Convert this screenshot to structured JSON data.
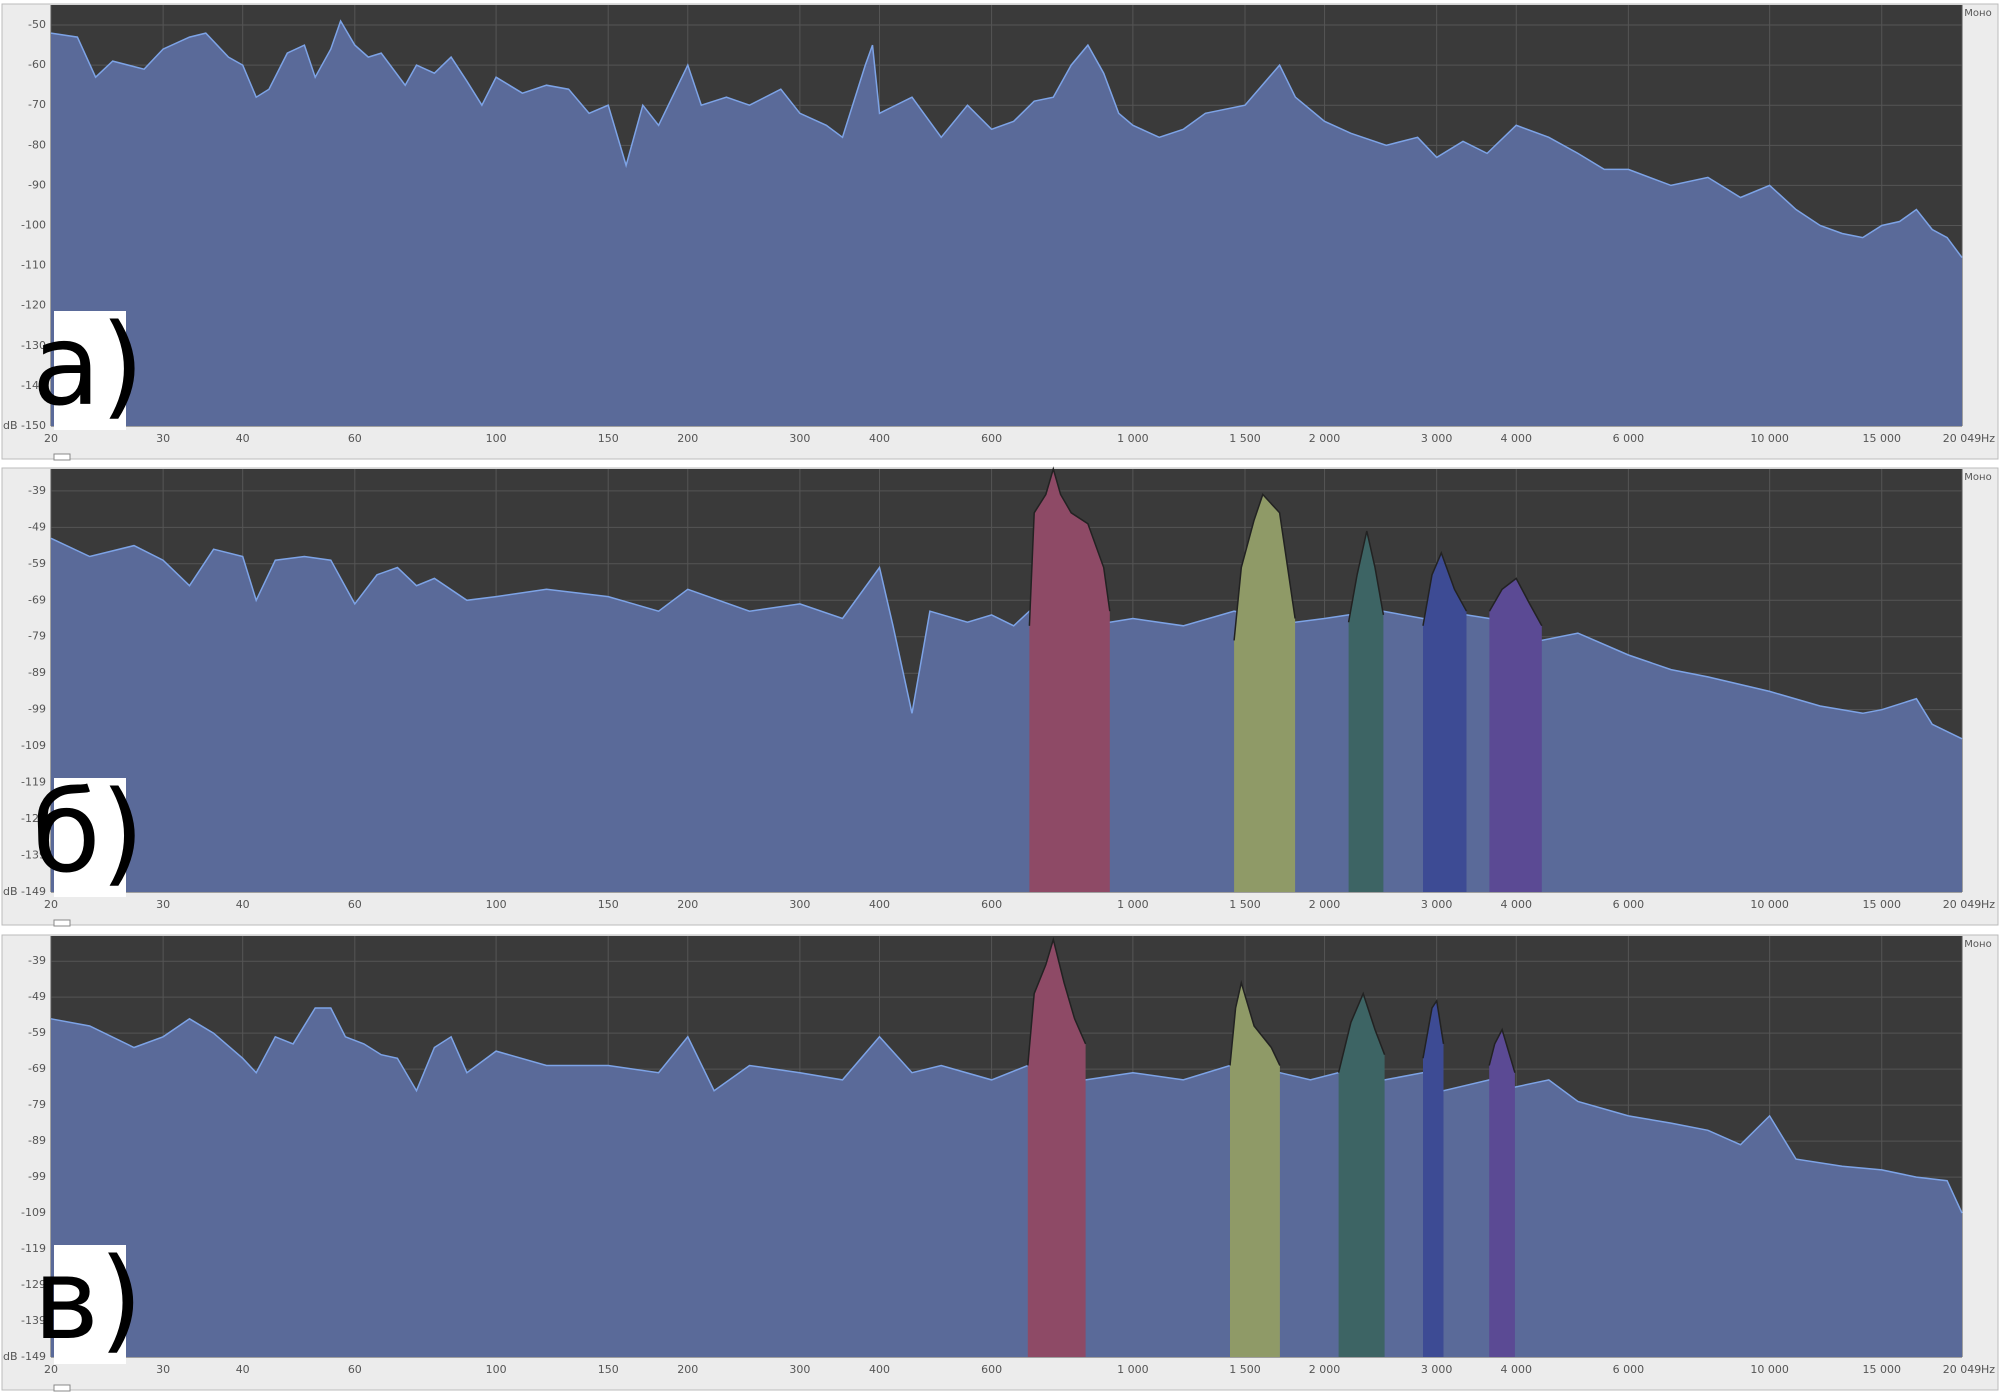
{
  "chart_data": [
    {
      "type": "area",
      "label": "а)",
      "channel": "Моно",
      "x_unit": "Hz",
      "color": "#5a6a99",
      "line_color": "#7da3e6",
      "xscale": "log",
      "grid": true,
      "xlim": [
        20,
        20049
      ],
      "ylim": [
        -150,
        -45
      ],
      "xticks": [
        20,
        30,
        40,
        60,
        100,
        150,
        200,
        300,
        400,
        600,
        {
          "value": 1000,
          "label": "1 000"
        },
        {
          "value": 1500,
          "label": "1 500"
        },
        {
          "value": 2000,
          "label": "2 000"
        },
        {
          "value": 3000,
          "label": "3 000"
        },
        {
          "value": 4000,
          "label": "4 000"
        },
        {
          "value": 6000,
          "label": "6 000"
        },
        {
          "value": 10000,
          "label": "10 000"
        },
        {
          "value": 15000,
          "label": "15 000"
        },
        {
          "value": 20049,
          "label": "20 049"
        }
      ],
      "yticks": [
        {
          "value": -150,
          "label": "dB -150"
        },
        -140,
        -130,
        -120,
        -110,
        -100,
        -90,
        -80,
        -70,
        -60,
        -50
      ],
      "x": [
        20,
        22,
        23.5,
        25,
        28,
        30,
        33,
        35,
        38,
        40,
        42,
        44,
        47,
        50,
        52,
        55,
        57,
        60,
        63,
        66,
        72,
        75,
        80,
        85,
        90,
        95,
        100,
        110,
        120,
        130,
        140,
        150,
        160,
        170,
        180,
        200,
        210,
        230,
        250,
        280,
        300,
        330,
        350,
        380,
        390,
        400,
        450,
        500,
        550,
        600,
        650,
        700,
        750,
        800,
        850,
        900,
        950,
        1000,
        1100,
        1200,
        1300,
        1500,
        1700,
        1800,
        2000,
        2200,
        2500,
        2800,
        3000,
        3300,
        3600,
        4000,
        4500,
        5000,
        5500,
        6000,
        7000,
        8000,
        9000,
        10000,
        11000,
        12000,
        13000,
        14000,
        15000,
        16000,
        17000,
        18000,
        19000,
        20049
      ],
      "values": [
        -52,
        -53,
        -63,
        -59,
        -61,
        -56,
        -53,
        -52,
        -58,
        -60,
        -68,
        -66,
        -57,
        -55,
        -63,
        -56,
        -49,
        -55,
        -58,
        -57,
        -65,
        -60,
        -62,
        -58,
        -64,
        -70,
        -63,
        -67,
        -65,
        -66,
        -72,
        -70,
        -85,
        -70,
        -75,
        -60,
        -70,
        -68,
        -70,
        -66,
        -72,
        -75,
        -78,
        -60,
        -55,
        -72,
        -68,
        -78,
        -70,
        -76,
        -74,
        -69,
        -68,
        -60,
        -55,
        -62,
        -72,
        -75,
        -78,
        -76,
        -72,
        -70,
        -60,
        -68,
        -74,
        -77,
        -80,
        -78,
        -83,
        -79,
        -82,
        -75,
        -78,
        -82,
        -86,
        -86,
        -90,
        -88,
        -93,
        -90,
        -96,
        -100,
        -102,
        -103,
        -100,
        -99,
        -96,
        -101,
        -103,
        -108
      ],
      "bands": []
    },
    {
      "type": "area",
      "label": "б)",
      "channel": "Моно",
      "x_unit": "Hz",
      "color": "#5a6a99",
      "line_color": "#7da3e6",
      "xscale": "log",
      "grid": true,
      "xlim": [
        20,
        20049
      ],
      "ylim": [
        -149,
        -33
      ],
      "xticks": [
        20,
        30,
        40,
        60,
        100,
        150,
        200,
        300,
        400,
        600,
        {
          "value": 1000,
          "label": "1 000"
        },
        {
          "value": 1500,
          "label": "1 500"
        },
        {
          "value": 2000,
          "label": "2 000"
        },
        {
          "value": 3000,
          "label": "3 000"
        },
        {
          "value": 4000,
          "label": "4 000"
        },
        {
          "value": 6000,
          "label": "6 000"
        },
        {
          "value": 10000,
          "label": "10 000"
        },
        {
          "value": 15000,
          "label": "15 000"
        },
        {
          "value": 20049,
          "label": "20 049"
        }
      ],
      "yticks": [
        {
          "value": -149,
          "label": "dB -149"
        },
        -139,
        -129,
        -119,
        -109,
        -99,
        -89,
        -79,
        -69,
        -59,
        -49,
        -39
      ],
      "x": [
        20,
        23,
        27,
        30,
        33,
        36,
        40,
        42,
        45,
        50,
        55,
        60,
        65,
        70,
        75,
        80,
        90,
        100,
        120,
        150,
        180,
        200,
        250,
        300,
        350,
        400,
        420,
        450,
        480,
        550,
        600,
        650,
        688,
        920,
        1000,
        1200,
        1442,
        1798,
        2000,
        2182,
        2474,
        2855,
        3341,
        3630,
        4388,
        5000,
        6000,
        7000,
        8000,
        10000,
        12000,
        14000,
        15000,
        17000,
        18000,
        20049
      ],
      "values": [
        -52,
        -57,
        -54,
        -58,
        -65,
        -55,
        -57,
        -69,
        -58,
        -57,
        -58,
        -70,
        -62,
        -60,
        -65,
        -63,
        -69,
        -68,
        -66,
        -68,
        -72,
        -66,
        -72,
        -70,
        -74,
        -60,
        -76,
        -100,
        -72,
        -75,
        -73,
        -76,
        -72,
        -75,
        -74,
        -76,
        -72,
        -75,
        -74,
        -73,
        -72,
        -74,
        -73,
        -74,
        -80,
        -78,
        -84,
        -88,
        -90,
        -94,
        -98,
        -100,
        -99,
        -96,
        -103,
        -107
      ],
      "bands": [
        {
          "color": "#8e4a66",
          "x": [
            688,
            700,
            730,
            750,
            770,
            800,
            850,
            900,
            920
          ],
          "values": [
            -76,
            -45,
            -40,
            -33,
            -40,
            -45,
            -48,
            -60,
            -72
          ]
        },
        {
          "color": "#8f9a67",
          "x": [
            1442,
            1480,
            1550,
            1600,
            1700,
            1798
          ],
          "values": [
            -80,
            -60,
            -47,
            -40,
            -45,
            -74
          ]
        },
        {
          "color": "#3d6464",
          "x": [
            2182,
            2250,
            2330,
            2400,
            2474
          ],
          "values": [
            -75,
            -62,
            -50,
            -60,
            -73
          ]
        },
        {
          "color": "#3d4b94",
          "x": [
            2855,
            2950,
            3050,
            3200,
            3341
          ],
          "values": [
            -76,
            -62,
            -56,
            -66,
            -72
          ]
        },
        {
          "color": "#5b4a94",
          "x": [
            3630,
            3800,
            4000,
            4200,
            4388
          ],
          "values": [
            -72,
            -66,
            -63,
            -70,
            -76
          ]
        }
      ]
    },
    {
      "type": "area",
      "label": "в)",
      "channel": "Моно",
      "x_unit": "Hz",
      "color": "#5a6a99",
      "line_color": "#7da3e6",
      "xscale": "log",
      "grid": true,
      "xlim": [
        20,
        20049
      ],
      "ylim": [
        -149,
        -32
      ],
      "xticks": [
        20,
        30,
        40,
        60,
        100,
        150,
        200,
        300,
        400,
        600,
        {
          "value": 1000,
          "label": "1 000"
        },
        {
          "value": 1500,
          "label": "1 500"
        },
        {
          "value": 2000,
          "label": "2 000"
        },
        {
          "value": 3000,
          "label": "3 000"
        },
        {
          "value": 4000,
          "label": "4 000"
        },
        {
          "value": 6000,
          "label": "6 000"
        },
        {
          "value": 10000,
          "label": "10 000"
        },
        {
          "value": 15000,
          "label": "15 000"
        },
        {
          "value": 20049,
          "label": "20 049"
        }
      ],
      "yticks": [
        {
          "value": -149,
          "label": "dB -149"
        },
        -139,
        -129,
        -119,
        -109,
        -99,
        -89,
        -79,
        -69,
        -59,
        -49,
        -39
      ],
      "x": [
        20,
        23,
        27,
        30,
        33,
        36,
        40,
        42,
        45,
        48,
        52,
        55,
        58,
        62,
        66,
        70,
        75,
        80,
        85,
        90,
        100,
        120,
        150,
        180,
        200,
        220,
        250,
        300,
        350,
        400,
        450,
        500,
        600,
        684,
        843,
        1000,
        1200,
        1421,
        1702,
        1900,
        2104,
        2485,
        2855,
        3075,
        3628,
        3980,
        4500,
        5000,
        6000,
        7000,
        8000,
        9000,
        10000,
        11000,
        13000,
        15000,
        17000,
        19000,
        20049
      ],
      "values": [
        -55,
        -57,
        -63,
        -60,
        -55,
        -59,
        -66,
        -70,
        -60,
        -62,
        -52,
        -52,
        -60,
        -62,
        -65,
        -66,
        -75,
        -63,
        -60,
        -70,
        -64,
        -68,
        -68,
        -70,
        -60,
        -75,
        -68,
        -70,
        -72,
        -60,
        -70,
        -68,
        -72,
        -68,
        -72,
        -70,
        -72,
        -68,
        -70,
        -72,
        -70,
        -72,
        -70,
        -75,
        -72,
        -74,
        -72,
        -78,
        -82,
        -84,
        -86,
        -90,
        -82,
        -94,
        -96,
        -97,
        -99,
        -100,
        -109
      ],
      "bands": [
        {
          "color": "#8e4a66",
          "x": [
            684,
            700,
            730,
            750,
            780,
            810,
            843
          ],
          "values": [
            -68,
            -48,
            -40,
            -33,
            -45,
            -55,
            -62
          ]
        },
        {
          "color": "#8f9a67",
          "x": [
            1421,
            1450,
            1480,
            1550,
            1650,
            1702
          ],
          "values": [
            -68,
            -52,
            -45,
            -57,
            -63,
            -68
          ]
        },
        {
          "color": "#3d6464",
          "x": [
            2104,
            2200,
            2300,
            2400,
            2485
          ],
          "values": [
            -70,
            -56,
            -48,
            -58,
            -65
          ]
        },
        {
          "color": "#3d4b94",
          "x": [
            2855,
            2950,
            3000,
            3075
          ],
          "values": [
            -66,
            -52,
            -50,
            -62
          ]
        },
        {
          "color": "#5b4a94",
          "x": [
            3628,
            3700,
            3800,
            3980
          ],
          "values": [
            -68,
            -62,
            -58,
            -70
          ]
        }
      ]
    }
  ]
}
